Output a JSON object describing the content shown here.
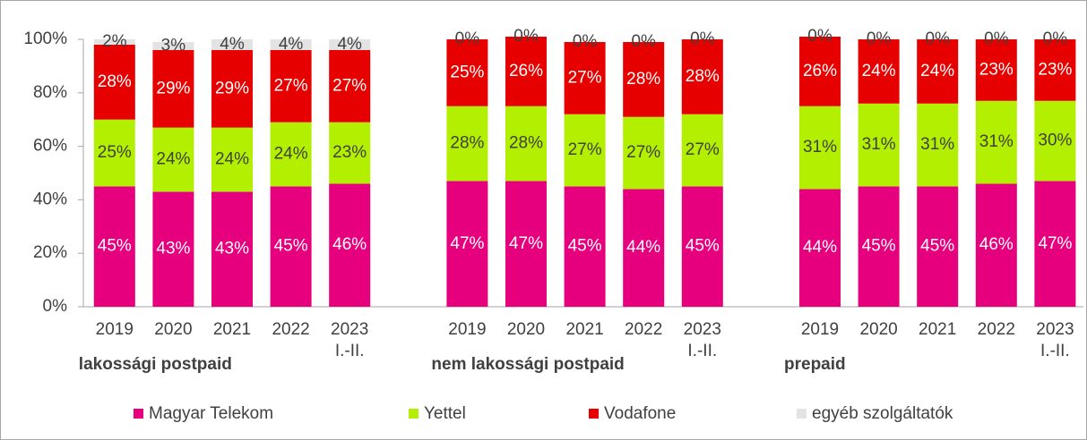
{
  "chart_data": {
    "type": "stacked-bar",
    "categories": [
      "2019",
      "2020",
      "2021",
      "2022",
      "2023\nI.-II.",
      "2019",
      "2020",
      "2021",
      "2022",
      "2023\nI.-II.",
      "2019",
      "2020",
      "2021",
      "2022",
      "2023\nI.-II."
    ],
    "groups": [
      "lakossági postpaid",
      "nem lakossági postpaid",
      "prepaid"
    ],
    "series": [
      {
        "name": "Magyar Telekom",
        "color": "#e6007e",
        "label_color": "#ffffff",
        "values": [
          45,
          43,
          43,
          45,
          46,
          47,
          47,
          45,
          44,
          45,
          44,
          45,
          45,
          46,
          47
        ],
        "value_labels": [
          "45%",
          "43%",
          "43%",
          "45%",
          "46%",
          "47%",
          "47%",
          "45%",
          "44%",
          "45%",
          "44%",
          "45%",
          "45%",
          "46%",
          "47%"
        ]
      },
      {
        "name": "Yettel",
        "color": "#b3ef00",
        "label_color": "#404040",
        "values": [
          25,
          24,
          24,
          24,
          23,
          28,
          28,
          27,
          27,
          27,
          31,
          31,
          31,
          31,
          30
        ],
        "value_labels": [
          "25%",
          "24%",
          "24%",
          "24%",
          "23%",
          "28%",
          "28%",
          "27%",
          "27%",
          "27%",
          "31%",
          "31%",
          "31%",
          "31%",
          "30%"
        ]
      },
      {
        "name": "Vodafone",
        "color": "#e60000",
        "label_color": "#ffffff",
        "values": [
          28,
          29,
          29,
          27,
          27,
          25,
          26,
          27,
          28,
          28,
          26,
          24,
          24,
          23,
          23
        ],
        "value_labels": [
          "28%",
          "29%",
          "29%",
          "27%",
          "27%",
          "25%",
          "26%",
          "27%",
          "28%",
          "28%",
          "26%",
          "24%",
          "24%",
          "23%",
          "23%"
        ]
      },
      {
        "name": "egyéb szolgáltatók",
        "color": "#e3e3e3",
        "label_color": "#404040",
        "values": [
          2,
          3,
          4,
          4,
          4,
          0,
          0,
          0,
          0,
          0,
          0,
          0,
          0,
          0,
          0
        ],
        "value_labels": [
          "2%",
          "3%",
          "4%",
          "4%",
          "4%",
          "0%",
          "0%",
          "0%",
          "0%",
          "0%",
          "0%",
          "0%",
          "0%",
          "0%",
          "0%"
        ]
      }
    ],
    "ylim": [
      0,
      100
    ],
    "yticks": [
      {
        "value": 0,
        "label": "0%"
      },
      {
        "value": 20,
        "label": "20%"
      },
      {
        "value": 40,
        "label": "40%"
      },
      {
        "value": 60,
        "label": "60%"
      },
      {
        "value": 80,
        "label": "80%"
      },
      {
        "value": 100,
        "label": "100%"
      }
    ],
    "legend": "bottom"
  }
}
